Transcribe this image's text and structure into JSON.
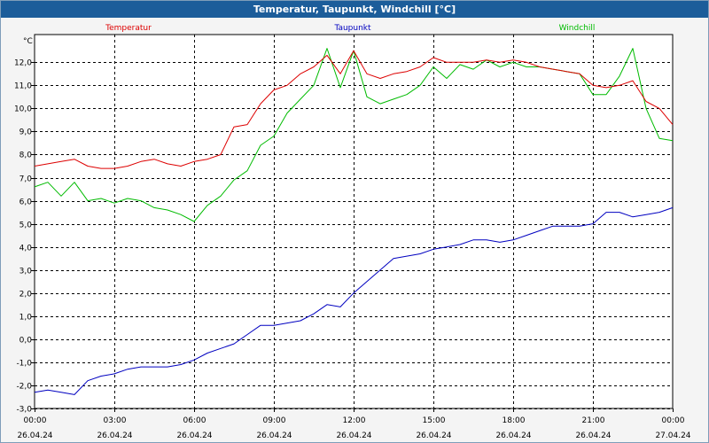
{
  "window": {
    "title": "Temperatur, Taupunkt, Windchill [°C]"
  },
  "chart_data": {
    "type": "line",
    "title": "Temperatur, Taupunkt, Windchill [°C]",
    "ylabel": "°C",
    "ylim": [
      -3.0,
      13.2
    ],
    "yticks": [
      -3.0,
      -2.0,
      -1.0,
      0.0,
      1.0,
      2.0,
      3.0,
      4.0,
      5.0,
      6.0,
      7.0,
      8.0,
      9.0,
      10.0,
      11.0,
      12.0
    ],
    "ytick_labels": [
      "-3,0",
      "-2,0",
      "-1,0",
      "0,0",
      "1,0",
      "2,0",
      "3,0",
      "4,0",
      "5,0",
      "6,0",
      "7,0",
      "8,0",
      "9,0",
      "10,0",
      "11,0",
      "12,0"
    ],
    "xlim_hours": [
      0,
      24
    ],
    "x_hours": [
      0,
      0.5,
      1,
      1.5,
      2,
      2.5,
      3,
      3.5,
      4,
      4.5,
      5,
      5.5,
      6,
      6.5,
      7,
      7.5,
      8,
      8.5,
      9,
      9.5,
      10,
      10.5,
      11,
      11.5,
      12,
      12.5,
      13,
      13.5,
      14,
      14.5,
      15,
      15.5,
      16,
      16.5,
      17,
      17.5,
      18,
      18.5,
      19,
      19.5,
      20,
      20.5,
      21,
      21.5,
      22,
      22.5,
      23,
      23.5,
      24
    ],
    "xticks": [
      {
        "hour": 0,
        "time": "00:00",
        "date": "26.04.24"
      },
      {
        "hour": 3,
        "time": "03:00",
        "date": "26.04.24"
      },
      {
        "hour": 6,
        "time": "06:00",
        "date": "26.04.24"
      },
      {
        "hour": 9,
        "time": "09:00",
        "date": "26.04.24"
      },
      {
        "hour": 12,
        "time": "12:00",
        "date": "26.04.24"
      },
      {
        "hour": 15,
        "time": "15:00",
        "date": "26.04.24"
      },
      {
        "hour": 18,
        "time": "18:00",
        "date": "26.04.24"
      },
      {
        "hour": 21,
        "time": "21:00",
        "date": "26.04.24"
      },
      {
        "hour": 24,
        "time": "00:00",
        "date": "27.04.24"
      }
    ],
    "series": [
      {
        "name": "Temperatur",
        "color": "#dd0000",
        "values": [
          7.5,
          7.6,
          7.7,
          7.8,
          7.5,
          7.4,
          7.4,
          7.5,
          7.7,
          7.8,
          7.6,
          7.5,
          7.7,
          7.8,
          8.0,
          9.2,
          9.3,
          10.2,
          10.8,
          11.0,
          11.5,
          11.8,
          12.3,
          11.5,
          12.5,
          11.5,
          11.3,
          11.5,
          11.6,
          11.8,
          12.2,
          12.0,
          12.0,
          12.0,
          12.1,
          12.0,
          12.1,
          12.0,
          11.8,
          11.7,
          11.6,
          11.5,
          11.0,
          10.9,
          11.0,
          11.2,
          10.3,
          10.0,
          9.3
        ]
      },
      {
        "name": "Taupunkt",
        "color": "#0000c0",
        "values": [
          -2.3,
          -2.2,
          -2.3,
          -2.4,
          -1.8,
          -1.6,
          -1.5,
          -1.3,
          -1.2,
          -1.2,
          -1.2,
          -1.1,
          -0.9,
          -0.6,
          -0.4,
          -0.2,
          0.2,
          0.6,
          0.6,
          0.7,
          0.8,
          1.1,
          1.5,
          1.4,
          2.0,
          2.5,
          3.0,
          3.5,
          3.6,
          3.7,
          3.9,
          4.0,
          4.1,
          4.3,
          4.3,
          4.2,
          4.3,
          4.5,
          4.7,
          4.9,
          4.9,
          4.9,
          5.0,
          5.5,
          5.5,
          5.3,
          5.4,
          5.5,
          5.7
        ]
      },
      {
        "name": "Windchill",
        "color": "#00bb00",
        "values": [
          6.6,
          6.8,
          6.2,
          6.8,
          6.0,
          6.1,
          5.9,
          6.1,
          6.0,
          5.7,
          5.6,
          5.4,
          5.1,
          5.8,
          6.2,
          6.9,
          7.3,
          8.4,
          8.8,
          9.8,
          10.4,
          11.0,
          12.6,
          10.9,
          12.5,
          10.5,
          10.2,
          10.4,
          10.6,
          11.0,
          11.8,
          11.3,
          11.9,
          11.7,
          12.1,
          11.8,
          12.0,
          11.8,
          11.8,
          11.7,
          11.6,
          11.5,
          10.6,
          10.6,
          11.4,
          12.6,
          10.0,
          8.7,
          8.6
        ]
      }
    ]
  }
}
